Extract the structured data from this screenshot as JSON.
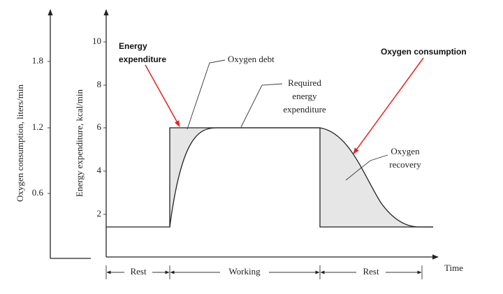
{
  "axes": {
    "left_label": "Oxygen consumption, liters/min",
    "left_ticks": [
      1.8,
      1.2,
      0.6
    ],
    "inner_label": "Energy expenditure, kcal/min",
    "inner_ticks": [
      10,
      8,
      6,
      4,
      2
    ],
    "x_label": "Time"
  },
  "phases": [
    "Rest",
    "Working",
    "Rest"
  ],
  "annotations": {
    "energy_expenditure": [
      "Energy",
      "expenditure"
    ],
    "oxygen_debt": "Oxygen debt",
    "required": [
      "Required",
      "energy",
      "expenditure"
    ],
    "oxygen_consumption": "Oxygen consumption",
    "oxygen_recovery": [
      "Oxygen",
      "recovery"
    ]
  }
}
